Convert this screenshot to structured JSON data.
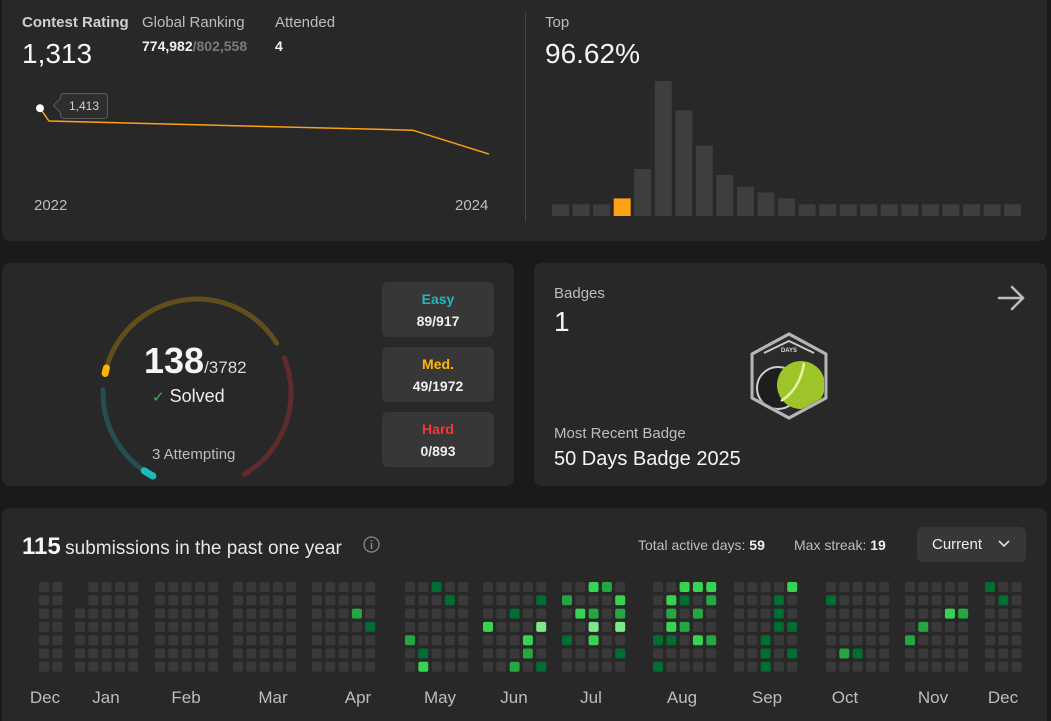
{
  "contest": {
    "rating_label": "Contest Rating",
    "rating_value": "1,313",
    "ranking_label": "Global Ranking",
    "ranking_value": "774,982",
    "ranking_total": "/802,558",
    "attended_label": "Attended",
    "attended_value": "4",
    "tooltip_value": "1,413",
    "year_start": "2022",
    "year_end": "2024",
    "top_label": "Top",
    "top_value": "96.62%",
    "accent_color": "#ffa116"
  },
  "rating_chart": {
    "type": "line",
    "points": [
      {
        "t": 0.0,
        "rating": 1413
      },
      {
        "t": 0.02,
        "rating": 1385
      },
      {
        "t": 0.83,
        "rating": 1365
      },
      {
        "t": 1.0,
        "rating": 1313
      }
    ],
    "ylim": [
      1300,
      1420
    ]
  },
  "histogram": {
    "type": "bar",
    "values": [
      2,
      2,
      2,
      3,
      8,
      23,
      18,
      12,
      7,
      5,
      4,
      3,
      2,
      2,
      2,
      2,
      2,
      2,
      2,
      2,
      2,
      2,
      2
    ],
    "highlight_index": 3
  },
  "solved": {
    "count": "138",
    "total": "/3782",
    "check_label": "✓",
    "solved_label": "Solved",
    "attempting_label": "3 Attempting",
    "colors": {
      "easy": "#1cbaba",
      "medium": "#ffb700",
      "hard": "#f63737"
    },
    "progress": {
      "easy": 0.097,
      "medium": 0.025,
      "hard": 0.0
    },
    "difficulty": [
      {
        "label": "Easy",
        "value": "89/917"
      },
      {
        "label": "Med.",
        "value": "49/1972"
      },
      {
        "label": "Hard",
        "value": "0/893"
      }
    ]
  },
  "badges": {
    "label": "Badges",
    "count": "1",
    "arrow_icon": "arrow-right-icon",
    "badge_text": "DAYS",
    "recent_label": "Most Recent Badge",
    "recent_name": "50 Days Badge 2025"
  },
  "submissions": {
    "count": "115",
    "title_rest": "submissions in the past one year",
    "info_icon": "info-icon",
    "active_label": "Total active days:",
    "active_value": "59",
    "streak_label": "Max streak:",
    "streak_value": "19",
    "dropdown_value": "Current",
    "months": [
      "Dec",
      "Jan",
      "Feb",
      "Mar",
      "Apr",
      "May",
      "Jun",
      "Jul",
      "Aug",
      "Sep",
      "Oct",
      "Nov",
      "Dec"
    ],
    "colors": {
      "empty": "#393939",
      "l1": "#0e4429",
      "l2": "#006d32",
      "l3": "#26a641",
      "l4": "#39d353",
      "l5": "#7ee787"
    }
  }
}
